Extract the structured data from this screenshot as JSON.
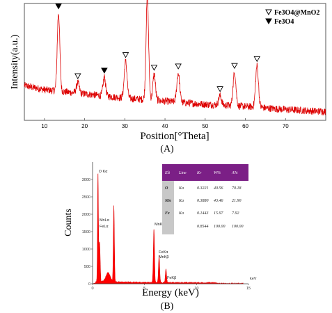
{
  "panel_labels": {
    "a": "(A)",
    "b": "(B)"
  },
  "chart_data": [
    {
      "type": "line",
      "xlabel": "Position[°Theta]",
      "ylabel": "Intensity(a.u.)",
      "xlim": [
        5,
        80
      ],
      "x_ticks": [
        10,
        20,
        30,
        40,
        50,
        60,
        70
      ],
      "legend": {
        "placement": "top-right",
        "entries": [
          {
            "marker": "open-triangle",
            "label": "Fe3O4@MnO2"
          },
          {
            "marker": "filled-triangle",
            "label": "Fe3O4"
          }
        ]
      },
      "line_color": "#dd0000",
      "baseline": [
        [
          5,
          0.3
        ],
        [
          10,
          0.26
        ],
        [
          20,
          0.22
        ],
        [
          30,
          0.18
        ],
        [
          40,
          0.15
        ],
        [
          50,
          0.12
        ],
        [
          60,
          0.1
        ],
        [
          70,
          0.07
        ],
        [
          80,
          0.05
        ]
      ],
      "peaks": [
        {
          "x": 13.5,
          "height": 0.75,
          "width": 0.45,
          "marker": "filled"
        },
        {
          "x": 18.3,
          "height": 0.1,
          "width": 0.5,
          "marker": "open"
        },
        {
          "x": 24.9,
          "height": 0.18,
          "width": 0.45,
          "marker": "filled"
        },
        {
          "x": 30.2,
          "height": 0.35,
          "width": 0.5,
          "marker": "open"
        },
        {
          "x": 35.6,
          "height": 0.98,
          "width": 0.45,
          "marker": "open"
        },
        {
          "x": 37.3,
          "height": 0.25,
          "width": 0.45,
          "marker": "open"
        },
        {
          "x": 43.3,
          "height": 0.28,
          "width": 0.5,
          "marker": "open"
        },
        {
          "x": 53.7,
          "height": 0.09,
          "width": 0.5,
          "marker": "open"
        },
        {
          "x": 57.3,
          "height": 0.32,
          "width": 0.5,
          "marker": "open"
        },
        {
          "x": 62.9,
          "height": 0.4,
          "width": 0.5,
          "marker": "open"
        }
      ]
    },
    {
      "type": "bar",
      "xlabel": "Energy (keV)",
      "ylabel": "Counts",
      "xlim": [
        0,
        15
      ],
      "ylim": [
        0,
        3500
      ],
      "x_ticks": [
        0,
        5,
        10,
        15
      ],
      "y_ticks": [
        0,
        500,
        1000,
        1500,
        2000,
        2500,
        3000
      ],
      "x_unit": "keV",
      "bar_color": "#ff0000",
      "peaks": [
        {
          "x": 0.52,
          "height": 3150,
          "width": 0.06
        },
        {
          "x": 0.64,
          "height": 880,
          "width": 0.06
        },
        {
          "x": 0.71,
          "height": 720,
          "width": 0.06
        },
        {
          "x": 2.05,
          "height": 2180,
          "width": 0.07
        },
        {
          "x": 5.9,
          "height": 1550,
          "width": 0.08
        },
        {
          "x": 6.4,
          "height": 780,
          "width": 0.08
        },
        {
          "x": 7.06,
          "height": 380,
          "width": 0.08
        },
        {
          "x": 1.5,
          "height": 260,
          "width": 0.3
        }
      ],
      "peak_labels": [
        {
          "text": "O Kα",
          "x": 0.52,
          "y": 3200
        },
        {
          "text": "MnLα",
          "x": 0.6,
          "y": 1800
        },
        {
          "text": "FeLα",
          "x": 0.6,
          "y": 1620
        },
        {
          "text": "MnKα",
          "x": 5.9,
          "y": 1680
        },
        {
          "text": "FeKα",
          "x": 6.3,
          "y": 880
        },
        {
          "text": "MnKβ",
          "x": 6.3,
          "y": 740
        },
        {
          "text": "FeKβ",
          "x": 7.1,
          "y": 140
        }
      ],
      "table": {
        "columns": [
          "Elt",
          "Line",
          "Kr",
          "W%",
          "A%"
        ],
        "rows": [
          [
            "O",
            "Ka",
            "0.3221",
            "40.56",
            "70.18"
          ],
          [
            "Mn",
            "Ka",
            "0.3880",
            "43.46",
            "21.90"
          ],
          [
            "Fe",
            "Ka",
            "0.1443",
            "15.97",
            "7.92"
          ],
          [
            "",
            "",
            "0.8544",
            "100.00",
            "100.00"
          ]
        ]
      }
    }
  ]
}
